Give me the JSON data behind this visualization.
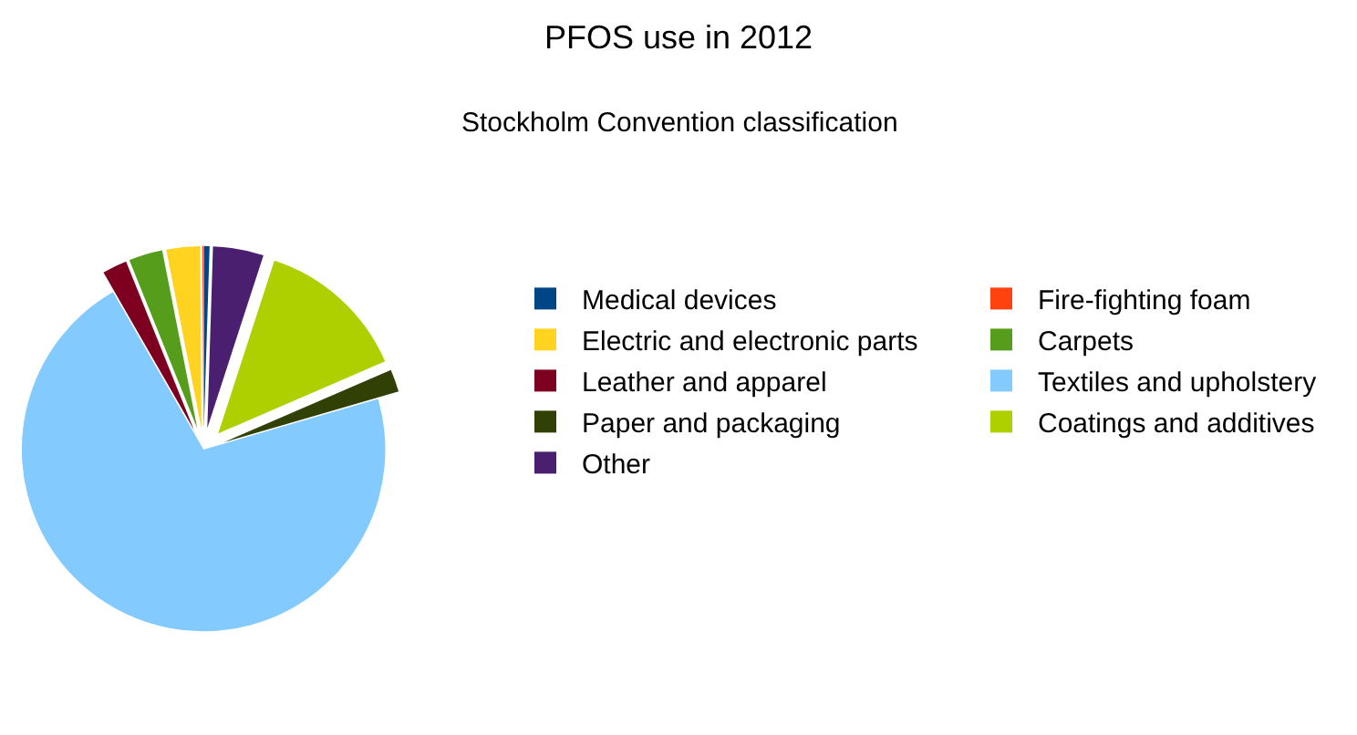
{
  "chart_data": {
    "type": "pie",
    "title": "PFOS use in 2012",
    "subtitle": "Stockholm Convention classification",
    "categories": [
      "Medical devices",
      "Fire-fighting foam",
      "Electric and electronic parts",
      "Carpets",
      "Leather and apparel",
      "Textiles and upholstery",
      "Paper and packaging",
      "Coatings and additives",
      "Other"
    ],
    "values": [
      0.5,
      0.1,
      3,
      3,
      2.2,
      71.2,
      2,
      13.5,
      4.5
    ],
    "colors": [
      "#004586",
      "#ff420e",
      "#ffd320",
      "#579d1c",
      "#7e0021",
      "#83caff",
      "#314004",
      "#aecf00",
      "#4b1f6f"
    ],
    "legend": "right"
  }
}
